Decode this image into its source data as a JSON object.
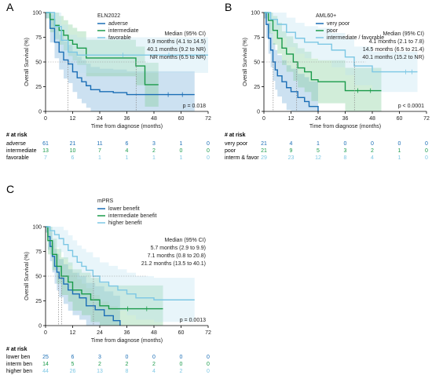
{
  "chart_data": [
    {
      "panel_label": "A",
      "type": "line",
      "subtype": "kaplan-meier",
      "legend_title": "ELN2022",
      "xlabel": "Time from diagnose (months)",
      "ylabel": "Overall Survival (%)",
      "x_ticks": [
        0,
        12,
        24,
        36,
        48,
        60,
        72
      ],
      "y_ticks": [
        0,
        25,
        50,
        75,
        100
      ],
      "xlim": [
        0,
        72
      ],
      "ylim": [
        0,
        100
      ],
      "median_header": "Median (95% CI)",
      "p_value": "p = 0.018",
      "risk_header": "# at risk",
      "risk_times": [
        0,
        12,
        24,
        36,
        48,
        60,
        72
      ],
      "series": [
        {
          "name": "adverse",
          "color": "#1a6db5",
          "band": "#6ea9d8",
          "median_text": "9.9 months (4.1 to 14.5)",
          "median_x": 9.9,
          "points": [
            [
              0,
              100
            ],
            [
              2,
              84
            ],
            [
              4,
              70
            ],
            [
              6,
              60
            ],
            [
              8,
              52
            ],
            [
              10,
              48
            ],
            [
              12,
              40
            ],
            [
              14,
              34
            ],
            [
              16,
              30
            ],
            [
              18,
              26
            ],
            [
              20,
              22
            ],
            [
              24,
              20
            ],
            [
              30,
              19
            ],
            [
              36,
              17
            ],
            [
              48,
              17
            ],
            [
              66,
              17
            ]
          ],
          "risk": [
            61,
            21,
            11,
            6,
            3,
            1,
            0
          ]
        },
        {
          "name": "intermediate",
          "color": "#1a9a4a",
          "band": "#7ccb92",
          "median_text": "40.1 months (9.2 to NR)",
          "median_x": 40.1,
          "points": [
            [
              0,
              100
            ],
            [
              2,
              93
            ],
            [
              4,
              87
            ],
            [
              6,
              82
            ],
            [
              8,
              77
            ],
            [
              10,
              72
            ],
            [
              12,
              68
            ],
            [
              14,
              64
            ],
            [
              18,
              54
            ],
            [
              36,
              54
            ],
            [
              40,
              46
            ],
            [
              44,
              27
            ],
            [
              50,
              27
            ]
          ],
          "risk": [
            13,
            10,
            7,
            4,
            2,
            0,
            0
          ]
        },
        {
          "name": "favorable",
          "color": "#7cc7e4",
          "band": "#bde3f2",
          "median_text": "NR months (6.5 to NR)",
          "median_x": null,
          "points": [
            [
              0,
              100
            ],
            [
              4,
              86
            ],
            [
              7,
              72
            ],
            [
              10,
              60
            ],
            [
              14,
              57
            ],
            [
              72,
              57
            ]
          ],
          "risk": [
            7,
            6,
            1,
            1,
            1,
            1,
            0
          ]
        }
      ]
    },
    {
      "panel_label": "B",
      "type": "line",
      "subtype": "kaplan-meier",
      "legend_title": "AML60+",
      "xlabel": "Time from diagnose (months)",
      "ylabel": "Overall Survival (%)",
      "x_ticks": [
        0,
        12,
        24,
        36,
        48,
        60,
        72
      ],
      "y_ticks": [
        0,
        25,
        50,
        75,
        100
      ],
      "xlim": [
        0,
        72
      ],
      "ylim": [
        0,
        100
      ],
      "median_header": "Median (95% CI)",
      "p_value": "p < 0.0001",
      "risk_header": "# at risk",
      "risk_times": [
        0,
        12,
        24,
        36,
        48,
        60,
        72
      ],
      "series": [
        {
          "name": "very poor",
          "color": "#1a6db5",
          "band": "#6ea9d8",
          "median_text": "4.1 months (2.1 to 7.8)",
          "median_x": 4.1,
          "points": [
            [
              0,
              100
            ],
            [
              1,
              88
            ],
            [
              2,
              74
            ],
            [
              3,
              62
            ],
            [
              4,
              50
            ],
            [
              5,
              42
            ],
            [
              6,
              36
            ],
            [
              8,
              30
            ],
            [
              10,
              24
            ],
            [
              12,
              20
            ],
            [
              15,
              14
            ],
            [
              18,
              10
            ],
            [
              20,
              5
            ],
            [
              24,
              0
            ]
          ],
          "risk": [
            21,
            4,
            1,
            0,
            0,
            0,
            0
          ]
        },
        {
          "name": "poor",
          "color": "#1a9a4a",
          "band": "#7ccb92",
          "median_text": "14.5 months (6.5 to 21.4)",
          "median_x": 14.5,
          "points": [
            [
              0,
              100
            ],
            [
              2,
              92
            ],
            [
              4,
              82
            ],
            [
              6,
              74
            ],
            [
              8,
              64
            ],
            [
              10,
              58
            ],
            [
              13,
              50
            ],
            [
              15,
              44
            ],
            [
              18,
              40
            ],
            [
              21,
              32
            ],
            [
              24,
              30
            ],
            [
              30,
              30
            ],
            [
              36,
              21
            ],
            [
              52,
              21
            ]
          ],
          "risk": [
            21,
            9,
            5,
            3,
            2,
            1,
            0
          ]
        },
        {
          "name": "intermediate / favorable",
          "color": "#7cc7e4",
          "band": "#bde3f2",
          "median_text": "40.1 months (15.2 to NR)",
          "median_x": 40.1,
          "points": [
            [
              0,
              100
            ],
            [
              3,
              93
            ],
            [
              6,
              88
            ],
            [
              10,
              80
            ],
            [
              14,
              74
            ],
            [
              18,
              70
            ],
            [
              24,
              68
            ],
            [
              30,
              62
            ],
            [
              36,
              55
            ],
            [
              40,
              46
            ],
            [
              48,
              40
            ],
            [
              60,
              40
            ],
            [
              68,
              40
            ]
          ],
          "risk": [
            29,
            23,
            12,
            8,
            4,
            1,
            0
          ]
        }
      ]
    },
    {
      "panel_label": "C",
      "type": "line",
      "subtype": "kaplan-meier",
      "legend_title": "mPRS",
      "xlabel": "Time from diagnose (months)",
      "ylabel": "Overall Survival (%)",
      "x_ticks": [
        0,
        12,
        24,
        36,
        48,
        60,
        72
      ],
      "y_ticks": [
        0,
        25,
        50,
        75,
        100
      ],
      "xlim": [
        0,
        72
      ],
      "ylim": [
        0,
        100
      ],
      "median_header": "Median (95% CI)",
      "p_value": "p = 0.0013",
      "risk_header": "# at risk",
      "risk_times": [
        0,
        12,
        24,
        36,
        48,
        60,
        72
      ],
      "series": [
        {
          "name": "lower benefit",
          "color": "#1a6db5",
          "band": "#6ea9d8",
          "median_text": "5.7 months (2.9 to 9.9)",
          "median_x": 5.7,
          "points": [
            [
              0,
              100
            ],
            [
              1,
              90
            ],
            [
              2,
              80
            ],
            [
              3,
              70
            ],
            [
              4,
              60
            ],
            [
              5,
              54
            ],
            [
              6,
              48
            ],
            [
              8,
              42
            ],
            [
              10,
              36
            ],
            [
              12,
              32
            ],
            [
              15,
              28
            ],
            [
              18,
              20
            ],
            [
              22,
              16
            ],
            [
              26,
              10
            ],
            [
              30,
              5
            ],
            [
              33,
              0
            ]
          ],
          "risk": [
            25,
            6,
            3,
            0,
            0,
            0,
            0
          ]
        },
        {
          "name": "intermediate benefit",
          "color": "#1a9a4a",
          "band": "#7ccb92",
          "median_text": "7.1 months (0.8 to 20.8)",
          "median_x": 7.1,
          "points": [
            [
              0,
              100
            ],
            [
              1,
              86
            ],
            [
              3,
              72
            ],
            [
              5,
              60
            ],
            [
              7,
              50
            ],
            [
              10,
              44
            ],
            [
              12,
              36
            ],
            [
              16,
              32
            ],
            [
              20,
              26
            ],
            [
              24,
              20
            ],
            [
              28,
              17
            ],
            [
              52,
              17
            ]
          ],
          "risk": [
            14,
            5,
            2,
            2,
            2,
            0,
            0
          ]
        },
        {
          "name": "higher benefit",
          "color": "#7cc7e4",
          "band": "#bde3f2",
          "median_text": "21.2 months (13.5 to 40.1)",
          "median_x": 21.2,
          "points": [
            [
              0,
              100
            ],
            [
              2,
              96
            ],
            [
              4,
              92
            ],
            [
              6,
              88
            ],
            [
              8,
              82
            ],
            [
              10,
              76
            ],
            [
              12,
              70
            ],
            [
              14,
              64
            ],
            [
              16,
              60
            ],
            [
              18,
              56
            ],
            [
              21,
              50
            ],
            [
              24,
              44
            ],
            [
              28,
              40
            ],
            [
              32,
              36
            ],
            [
              36,
              32
            ],
            [
              40,
              28
            ],
            [
              48,
              26
            ],
            [
              60,
              26
            ],
            [
              66,
              26
            ]
          ],
          "risk": [
            44,
            26,
            13,
            8,
            4,
            2,
            0
          ]
        }
      ]
    }
  ]
}
